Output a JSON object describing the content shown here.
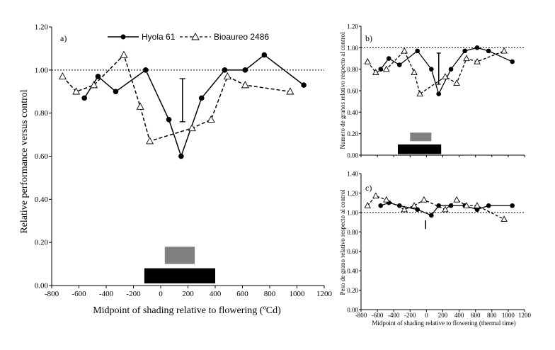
{
  "chart_data": [
    {
      "id": "a",
      "panel_label": "a)",
      "type": "line",
      "xlabel": "Midpoint of shading relative to flowering (ºCd)",
      "ylabel": "Relative performance versus control",
      "xlim": [
        -800,
        1200
      ],
      "ylim": [
        0,
        1.2
      ],
      "x_ticks": [
        "-800",
        "-600",
        "-400",
        "-200",
        "0",
        "200",
        "400",
        "600",
        "800",
        "1000",
        "1200"
      ],
      "y_ticks": [
        "0.00",
        "0.20",
        "0.40",
        "0.60",
        "0.80",
        "1.00",
        "1.20"
      ],
      "reference_line": 1.0,
      "legend": [
        {
          "name": "Hyola 61"
        },
        {
          "name": "Bioaureo 2486"
        }
      ],
      "series": [
        {
          "name": "Hyola 61",
          "style": "solid-filled-circle",
          "x": [
            -560,
            -460,
            -330,
            -110,
            60,
            150,
            300,
            470,
            620,
            760,
            1050
          ],
          "y": [
            0.87,
            0.97,
            0.9,
            1.0,
            0.77,
            0.6,
            0.87,
            1.0,
            1.0,
            1.07,
            0.93
          ]
        },
        {
          "name": "Bioaureo 2486",
          "style": "dashed-open-triangle",
          "x": [
            -720,
            -620,
            -490,
            -270,
            -150,
            -80,
            230,
            370,
            490,
            620,
            950
          ],
          "y": [
            0.97,
            0.9,
            0.93,
            1.07,
            0.83,
            0.67,
            0.73,
            0.77,
            0.97,
            0.93,
            0.9
          ]
        }
      ],
      "error_bar": {
        "x": 160,
        "y_low": 0.76,
        "y_high": 0.96
      },
      "shading_bars": [
        {
          "color": "#808080",
          "x_start": 30,
          "x_end": 250,
          "y_low": 0.1,
          "y_high": 0.18
        },
        {
          "color": "#000000",
          "x_start": -120,
          "x_end": 400,
          "y_low": 0.01,
          "y_high": 0.08
        }
      ]
    },
    {
      "id": "b",
      "panel_label": "b)",
      "type": "line",
      "xlabel": "",
      "ylabel": "Numero de granos relativo respecto al control",
      "xlim": [
        -800,
        1200
      ],
      "ylim": [
        0,
        1.2
      ],
      "y_ticks": [
        "0.00",
        "0.20",
        "0.40",
        "0.60",
        "0.80",
        "1.00",
        "1.20"
      ],
      "reference_line": 1.0,
      "series": [
        {
          "name": "Hyola 61",
          "style": "solid-filled-circle",
          "x": [
            -560,
            -460,
            -330,
            -110,
            60,
            150,
            300,
            470,
            620,
            760,
            1050
          ],
          "y": [
            0.8,
            0.9,
            0.84,
            0.97,
            0.8,
            0.57,
            0.8,
            0.97,
            1.0,
            0.97,
            0.87
          ]
        },
        {
          "name": "Bioaureo 2486",
          "style": "dashed-open-triangle",
          "x": [
            -720,
            -620,
            -490,
            -270,
            -150,
            -80,
            230,
            370,
            490,
            620,
            950
          ],
          "y": [
            0.87,
            0.77,
            0.8,
            0.97,
            0.77,
            0.57,
            0.73,
            0.67,
            0.9,
            0.87,
            0.97
          ]
        }
      ],
      "error_bar": {
        "x": 150,
        "y_low": 0.66,
        "y_high": 0.95
      },
      "shading_bars": [
        {
          "color": "#808080",
          "x_start": -200,
          "x_end": 60,
          "y_low": 0.13,
          "y_high": 0.21
        },
        {
          "color": "#000000",
          "x_start": -350,
          "x_end": 180,
          "y_low": 0.01,
          "y_high": 0.1
        }
      ]
    },
    {
      "id": "c",
      "panel_label": "c)",
      "type": "line",
      "xlabel": "Midpoint of shading relative to flowering (thermal time)",
      "ylabel": "Peso de grano relativo respecto al control",
      "xlim": [
        -800,
        1200
      ],
      "ylim": [
        0,
        1.4
      ],
      "x_ticks": [
        "-800",
        "-600",
        "-400",
        "-200",
        "0",
        "200",
        "400",
        "600",
        "800",
        "1000",
        "1200"
      ],
      "y_ticks": [
        "0.00",
        "0.20",
        "0.40",
        "0.60",
        "0.80",
        "1.00",
        "1.20",
        "1.40"
      ],
      "reference_line": 1.0,
      "series": [
        {
          "name": "Hyola 61",
          "style": "solid-filled-circle",
          "x": [
            -560,
            -460,
            -330,
            -110,
            60,
            150,
            300,
            470,
            620,
            760,
            1050
          ],
          "y": [
            1.07,
            1.1,
            1.07,
            1.03,
            0.97,
            1.07,
            1.07,
            1.07,
            1.03,
            1.07,
            1.07
          ]
        },
        {
          "name": "Bioaureo 2486",
          "style": "dashed-open-triangle",
          "x": [
            -720,
            -620,
            -490,
            -270,
            -150,
            -30,
            230,
            370,
            490,
            620,
            950
          ],
          "y": [
            1.07,
            1.17,
            1.13,
            1.03,
            1.07,
            1.13,
            1.03,
            1.13,
            1.07,
            1.07,
            0.93
          ]
        }
      ],
      "error_bar": {
        "x": -10,
        "y_low": 0.83,
        "y_high": 0.92
      }
    }
  ]
}
